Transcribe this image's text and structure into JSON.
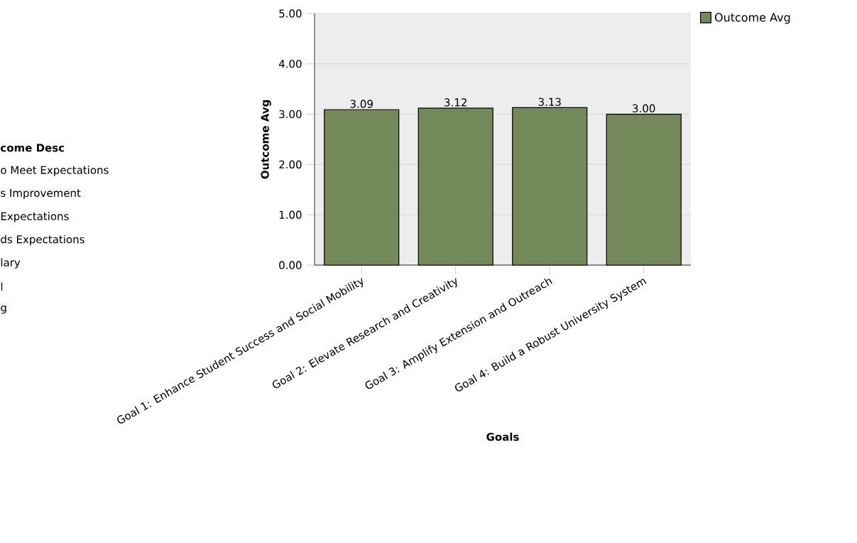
{
  "chart_data": {
    "type": "bar",
    "xlabel": "Goals",
    "ylabel": "Outcome Avg",
    "categories": [
      "Goal 1: Enhance Student Success and Social Mobility",
      "Goal 2: Elevate Research and Creativity",
      "Goal 3: Amplify Extension and Outreach",
      "Goal 4: Build a Robust University System"
    ],
    "series": [
      {
        "name": "Outcome Avg",
        "color": "#74895a",
        "values": [
          3.09,
          3.12,
          3.13,
          3.0
        ],
        "value_labels": [
          "3.09",
          "3.12",
          "3.13",
          "3.00"
        ]
      }
    ],
    "ylim": [
      0,
      5
    ],
    "yticks": [
      {
        "value": 0,
        "label": "0.00"
      },
      {
        "value": 1,
        "label": "1.00"
      },
      {
        "value": 2,
        "label": "2.00"
      },
      {
        "value": 3,
        "label": "3.00"
      },
      {
        "value": 4,
        "label": "4.00"
      },
      {
        "value": 5,
        "label": "5.00"
      }
    ],
    "grid": "y",
    "legend": "top right",
    "annotations": [
      "come Desc",
      "o Meet Expectations",
      "s Improvement",
      "Expectations",
      "ds Expectations",
      "lary",
      "l",
      "g"
    ]
  }
}
